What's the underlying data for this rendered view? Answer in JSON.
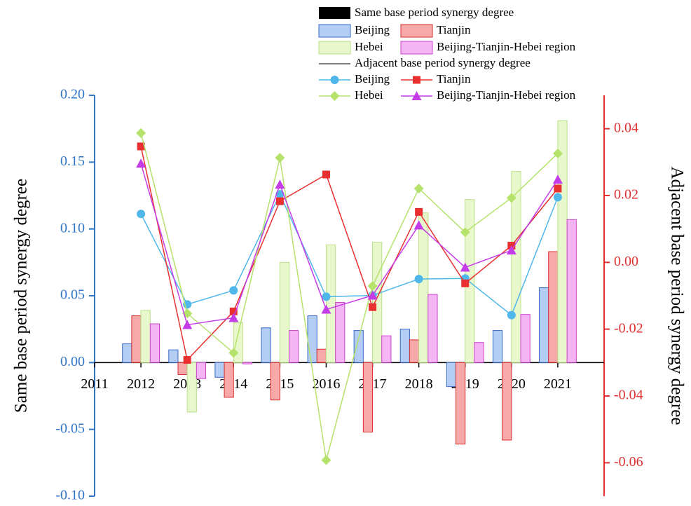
{
  "chart_data": {
    "type": "bar-line",
    "y_label": "Same base period synergy degree",
    "y2_label": "Adjacent base period synergy degree",
    "legend_groups": [
      "Same base period synergy degree",
      "Adjacent base period synergy degree"
    ],
    "x": [
      2012,
      2013,
      2014,
      2015,
      2016,
      2017,
      2018,
      2019,
      2020,
      2021
    ],
    "xlim": [
      2011,
      2022
    ],
    "xticks": [
      2011,
      2012,
      2013,
      2014,
      2015,
      2016,
      2017,
      2018,
      2019,
      2020,
      2021
    ],
    "ylim": [
      -0.1,
      0.2
    ],
    "yticks": [
      {
        "value": -0.1,
        "label": "-0.10"
      },
      {
        "value": -0.05,
        "label": "-0.05"
      },
      {
        "value": 0,
        "label": "0.00"
      },
      {
        "value": 0.05,
        "label": "0.05"
      },
      {
        "value": 0.1,
        "label": "0.10"
      },
      {
        "value": 0.15,
        "label": "0.15"
      },
      {
        "value": 0.2,
        "label": "0.20"
      }
    ],
    "y2lim": [
      -0.07,
      0.05
    ],
    "y2ticks": [
      {
        "value": -0.06,
        "label": "-0.06"
      },
      {
        "value": -0.04,
        "label": "-0.04"
      },
      {
        "value": -0.02,
        "label": "-0.02"
      },
      {
        "value": 0,
        "label": "0.00"
      },
      {
        "value": 0.02,
        "label": "0.02"
      },
      {
        "value": 0.04,
        "label": "0.04"
      }
    ],
    "y_color": "#2e75c7",
    "y2_color": "#e03030",
    "series": [
      {
        "name": "Beijing",
        "kind": "bar",
        "color": "#b3cdf5",
        "edge": "#3a6bc7",
        "values": [
          0.014,
          0.0095,
          -0.011,
          0.026,
          0.035,
          0.024,
          0.025,
          -0.018,
          0.024,
          0.056
        ]
      },
      {
        "name": "Tianjin",
        "kind": "bar",
        "color": "#f7a8a8",
        "edge": "#d93030",
        "values": [
          0.035,
          -0.009,
          -0.026,
          -0.028,
          0.01,
          -0.052,
          0.017,
          -0.061,
          -0.058,
          0.083
        ]
      },
      {
        "name": "Hebei",
        "kind": "bar",
        "color": "#e8f8cc",
        "edge": "#b9e089",
        "values": [
          0.039,
          -0.037,
          0.03,
          0.075,
          0.088,
          0.09,
          0.112,
          0.122,
          0.143,
          0.181
        ]
      },
      {
        "name": "Beijing-Tianjin-Hebei region",
        "kind": "bar",
        "color": "#f5b5f5",
        "edge": "#cc44cc",
        "values": [
          0.029,
          -0.012,
          -0.001,
          0.024,
          0.045,
          0.02,
          0.051,
          0.015,
          0.036,
          0.107
        ]
      },
      {
        "name": "Beijing",
        "kind": "line",
        "axis": "y2",
        "marker": "circle",
        "color": "#4fb7ea",
        "values": [
          0.0145,
          -0.0126,
          -0.0084,
          0.0204,
          -0.0103,
          -0.0099,
          -0.005,
          -0.0048,
          -0.0158,
          0.0195
        ]
      },
      {
        "name": "Tianjin",
        "kind": "line",
        "axis": "y2",
        "marker": "square",
        "color": "#e83030",
        "values": [
          0.0347,
          -0.0292,
          -0.0147,
          0.0183,
          0.0263,
          -0.0134,
          0.0151,
          -0.0063,
          0.005,
          0.0221
        ]
      },
      {
        "name": "Hebei",
        "kind": "line",
        "axis": "y2",
        "marker": "diamond",
        "color": "#b5e26b",
        "values": [
          0.0387,
          -0.0153,
          -0.0271,
          0.0313,
          -0.0592,
          -0.0071,
          0.0221,
          0.009,
          0.0193,
          0.0326
        ]
      },
      {
        "name": "Beijing-Tianjin-Hebei region",
        "kind": "line",
        "axis": "y2",
        "marker": "triangle",
        "color": "#c43ce8",
        "values": [
          0.0296,
          -0.0187,
          -0.0166,
          0.0233,
          -0.0141,
          -0.0099,
          0.0111,
          -0.0015,
          0.0036,
          0.0248
        ]
      }
    ]
  }
}
